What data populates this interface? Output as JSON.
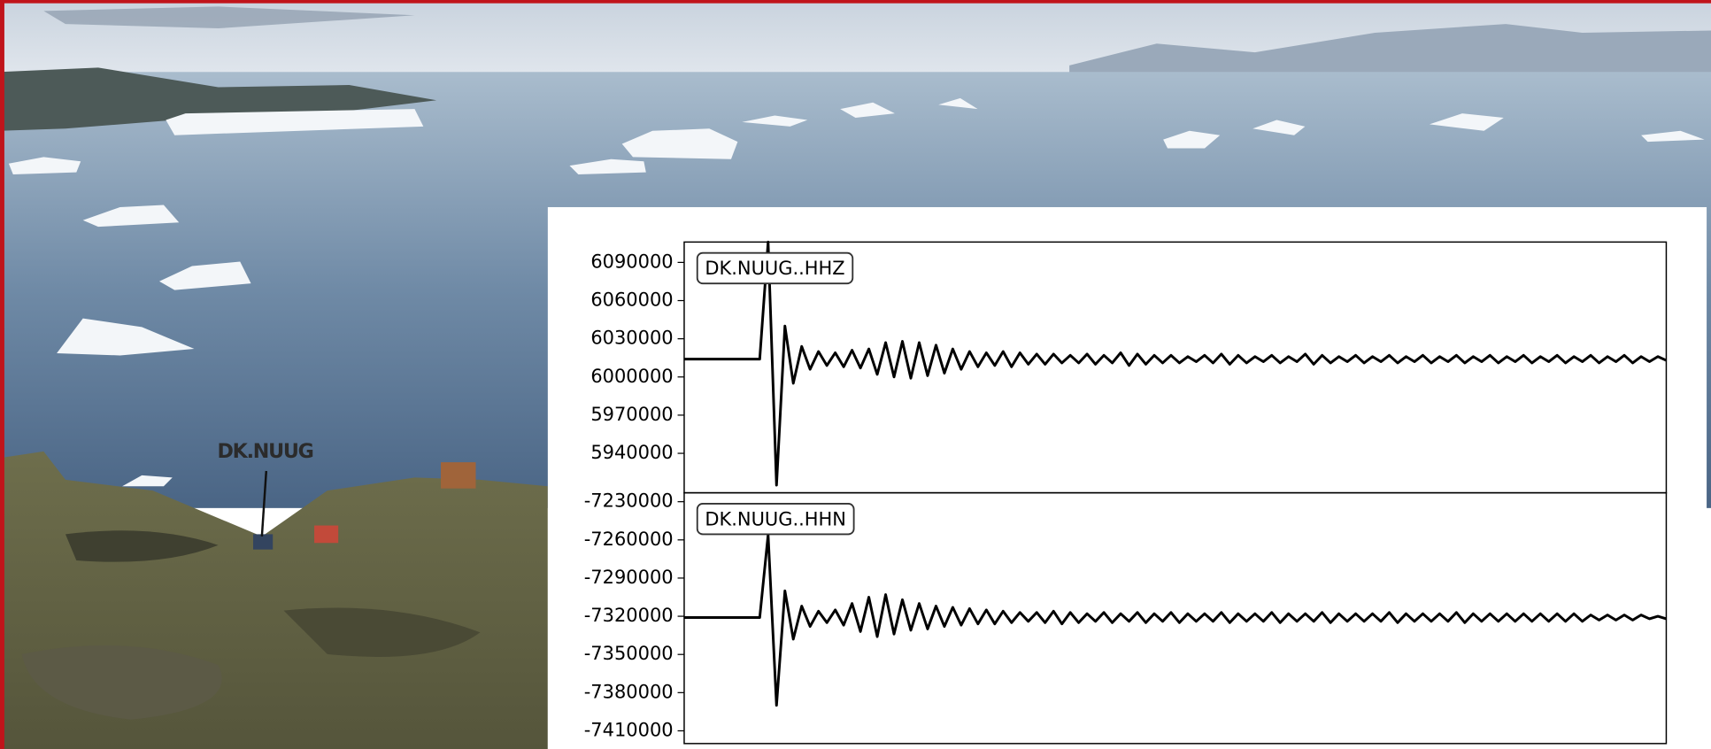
{
  "photo_label": "DK.NUUG",
  "chart_data": [
    {
      "type": "line",
      "label": "DK.NUUG..HHZ",
      "color": "#000000",
      "ylim": [
        5909000,
        6106000
      ],
      "yticks": [
        6090000,
        6060000,
        6030000,
        6000000,
        5970000,
        5940000
      ],
      "values": [
        6014000,
        6014000,
        6014000,
        6014000,
        6014000,
        6014000,
        6014000,
        6014000,
        6014000,
        6014000,
        6106000,
        5915000,
        6040000,
        5995000,
        6024000,
        6006000,
        6020000,
        6009000,
        6019000,
        6008000,
        6021000,
        6007000,
        6022000,
        6002000,
        6027000,
        6000000,
        6028000,
        5999000,
        6027000,
        6001000,
        6025000,
        6003000,
        6022000,
        6006000,
        6020000,
        6008000,
        6019000,
        6009000,
        6020000,
        6008000,
        6019000,
        6010000,
        6018000,
        6010000,
        6018000,
        6011000,
        6017000,
        6011000,
        6018000,
        6010000,
        6017000,
        6011000,
        6019000,
        6009000,
        6018000,
        6010000,
        6017000,
        6011000,
        6017000,
        6011000,
        6016000,
        6012000,
        6017000,
        6011000,
        6018000,
        6010000,
        6017000,
        6011000,
        6016000,
        6012000,
        6017000,
        6011000,
        6016000,
        6012000,
        6018000,
        6010000,
        6017000,
        6011000,
        6016000,
        6012000,
        6017000,
        6011000,
        6016000,
        6012000,
        6017000,
        6011000,
        6016000,
        6012000,
        6017000,
        6011000,
        6016000,
        6012000,
        6017000,
        6011000,
        6016000,
        6012000,
        6017000,
        6011000,
        6016000,
        6012000,
        6017000,
        6011000,
        6016000,
        6012000,
        6017000,
        6011000,
        6016000,
        6012000,
        6017000,
        6011000,
        6016000,
        6012000,
        6017000,
        6011000,
        6016000,
        6012000,
        6016000,
        6013000
      ]
    },
    {
      "type": "line",
      "label": "DK.NUUG..HHN",
      "color": "#000000",
      "ylim": [
        -7420000,
        -7223000
      ],
      "yticks": [
        -7230000,
        -7260000,
        -7290000,
        -7320000,
        -7350000,
        -7380000,
        -7410000
      ],
      "values": [
        -7321000,
        -7321000,
        -7321000,
        -7321000,
        -7321000,
        -7321000,
        -7321000,
        -7321000,
        -7321000,
        -7321000,
        -7256000,
        -7390000,
        -7300000,
        -7338000,
        -7312000,
        -7328000,
        -7316000,
        -7325000,
        -7315000,
        -7327000,
        -7310000,
        -7332000,
        -7305000,
        -7336000,
        -7303000,
        -7334000,
        -7307000,
        -7331000,
        -7310000,
        -7330000,
        -7312000,
        -7328000,
        -7313000,
        -7327000,
        -7314000,
        -7326000,
        -7315000,
        -7326000,
        -7316000,
        -7325000,
        -7317000,
        -7324000,
        -7317000,
        -7325000,
        -7316000,
        -7326000,
        -7317000,
        -7325000,
        -7318000,
        -7324000,
        -7317000,
        -7325000,
        -7318000,
        -7324000,
        -7317000,
        -7325000,
        -7318000,
        -7324000,
        -7317000,
        -7325000,
        -7318000,
        -7324000,
        -7318000,
        -7324000,
        -7317000,
        -7325000,
        -7318000,
        -7324000,
        -7318000,
        -7324000,
        -7317000,
        -7325000,
        -7318000,
        -7324000,
        -7318000,
        -7324000,
        -7317000,
        -7325000,
        -7318000,
        -7324000,
        -7318000,
        -7324000,
        -7318000,
        -7324000,
        -7317000,
        -7325000,
        -7318000,
        -7324000,
        -7318000,
        -7324000,
        -7318000,
        -7324000,
        -7317000,
        -7325000,
        -7318000,
        -7324000,
        -7318000,
        -7324000,
        -7318000,
        -7324000,
        -7318000,
        -7324000,
        -7318000,
        -7324000,
        -7318000,
        -7324000,
        -7318000,
        -7324000,
        -7319000,
        -7323000,
        -7319000,
        -7323000,
        -7319000,
        -7323000,
        -7319000,
        -7322000,
        -7320000,
        -7322000
      ]
    }
  ]
}
